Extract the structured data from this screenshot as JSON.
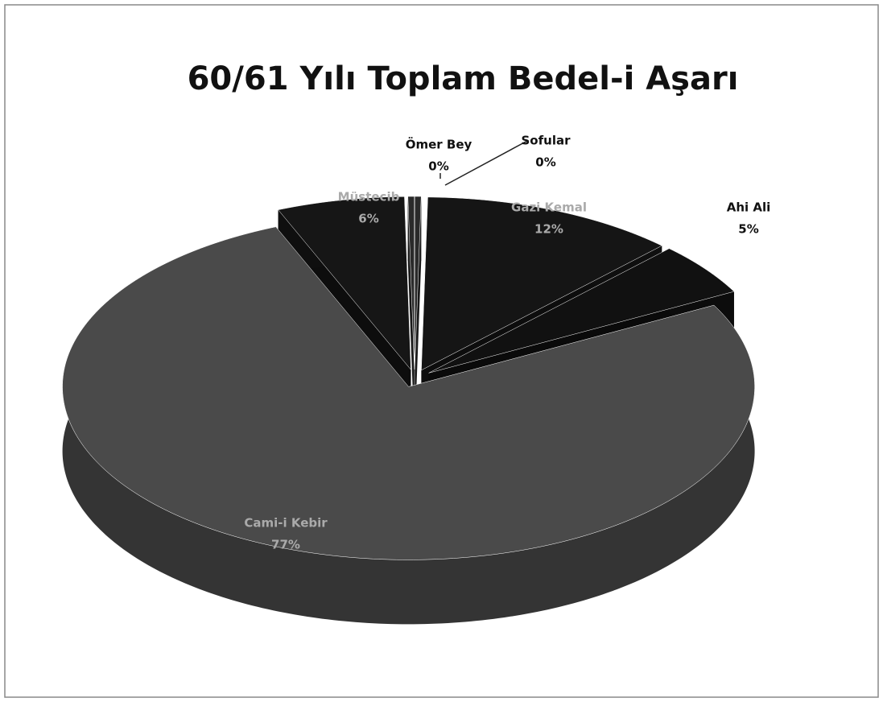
{
  "chart_data": {
    "type": "pie",
    "title": "60/61 Yılı Toplam Bedel-i Aşarı",
    "categories": [
      "Sofular",
      "Gazi Kemal",
      "Ahi Ali",
      "Cami-i Kebir",
      "Müstecib",
      "Ömer Bey"
    ],
    "values": [
      0.3,
      12,
      5,
      77,
      6,
      0.3
    ],
    "value_labels": [
      "0%",
      "12%",
      "5%",
      "77%",
      "6%",
      "0%"
    ],
    "colors": [
      "#2a2a2a",
      "#151515",
      "#111111",
      "#4a4a4a",
      "#161616",
      "#2a2a2a"
    ]
  }
}
